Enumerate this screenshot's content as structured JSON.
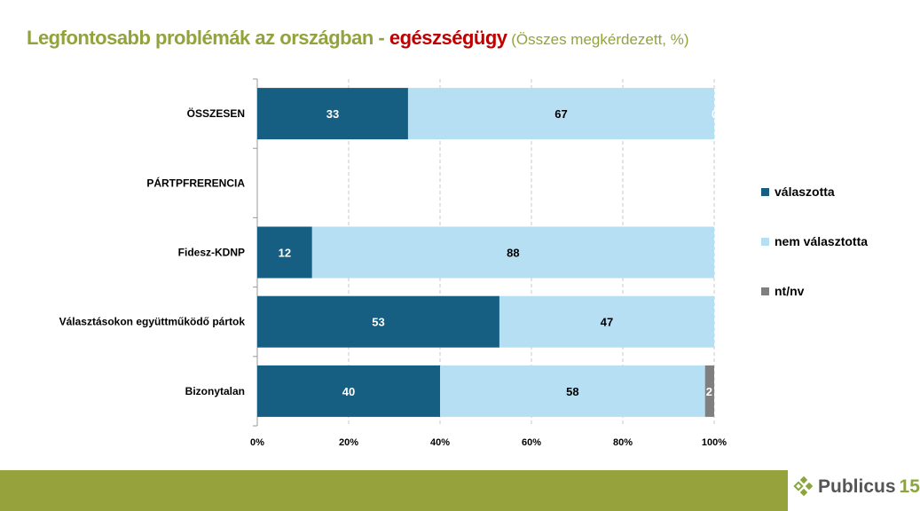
{
  "title": {
    "main": "Legfontosabb problémák az országban - ",
    "highlight": "egészségügy",
    "subtitle": " (Összes megkérdezett, %)"
  },
  "colors": {
    "valaszotta": "#165e82",
    "nem": "#b7dff3",
    "ntnv": "#7f7f7f",
    "title_green": "#93a33c",
    "title_red": "#c00000",
    "footer": "#96a23c"
  },
  "chart_data": {
    "type": "bar",
    "orientation": "horizontal-stacked-100",
    "categories": [
      "ÖSSZESEN",
      "PÁRTPFRERENCIA",
      "Fidesz-KDNP",
      "Választásokon együttműködő pártok",
      "Bizonytalan"
    ],
    "series": [
      {
        "name": "válaszotta",
        "values": [
          33,
          null,
          12,
          53,
          40
        ]
      },
      {
        "name": "nem választotta",
        "values": [
          67,
          null,
          88,
          47,
          58
        ]
      },
      {
        "name": "nt/nv",
        "values": [
          0,
          null,
          0,
          0,
          2
        ]
      }
    ],
    "label_shown": [
      [
        true,
        false,
        true,
        true,
        true
      ],
      [
        true,
        false,
        true,
        true,
        true
      ],
      [
        true,
        false,
        false,
        false,
        true
      ]
    ],
    "xlim": [
      0,
      100
    ],
    "xticks": [
      "0%",
      "20%",
      "40%",
      "60%",
      "80%",
      "100%"
    ],
    "grid": "vertical dashed",
    "legend_position": "right"
  },
  "logo": {
    "name": "Publicus",
    "number": "15"
  }
}
